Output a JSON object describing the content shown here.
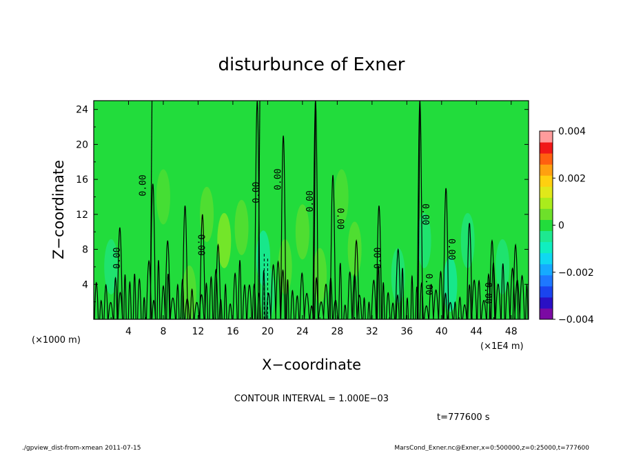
{
  "chart_data": {
    "type": "heatmap",
    "title": "disturbunce of Exner",
    "xlabel": "X−coordinate",
    "ylabel": "Z−coordinate",
    "x_unit": "(×1E4 m)",
    "y_unit": "(×1000 m)",
    "xlim": [
      0,
      50
    ],
    "ylim": [
      0,
      25
    ],
    "x_ticks": [
      "4",
      "8",
      "12",
      "16",
      "20",
      "24",
      "28",
      "32",
      "36",
      "40",
      "44",
      "48"
    ],
    "y_ticks": [
      "4",
      "8",
      "12",
      "16",
      "20",
      "24"
    ],
    "colorbar": {
      "ticks": [
        "0.004",
        "0.002",
        "0",
        "−0.002",
        "−0.004"
      ],
      "levels": [
        -0.004,
        -0.0035,
        -0.003,
        -0.0025,
        -0.002,
        -0.0015,
        -0.001,
        -0.0005,
        0,
        0.0005,
        0.001,
        0.0015,
        0.002,
        0.0025,
        0.003,
        0.0035,
        0.004
      ],
      "colors": [
        "#7b0aa3",
        "#2a10c4",
        "#1a44ee",
        "#1e78ff",
        "#16aaff",
        "#10d8f0",
        "#10eec0",
        "#1ee890",
        "#22dc3c",
        "#6ee02a",
        "#aaec1c",
        "#e0e81a",
        "#ffd010",
        "#ffa010",
        "#ff6010",
        "#f01818",
        "#ff9c9c"
      ]
    },
    "background_color": "#22dc3c",
    "contour_interval_text": "CONTOUR INTERVAL = 1.000E−03",
    "contour_label": "0.00",
    "contour_labels": [
      {
        "x": 6.0,
        "z": 15.3,
        "text": "0.00",
        "flip": false
      },
      {
        "x": 3.0,
        "z": 7.0,
        "text": "0.00",
        "flip": false
      },
      {
        "x": 12.0,
        "z": 8.5,
        "text": "0.00",
        "flip": true
      },
      {
        "x": 19.0,
        "z": 14.5,
        "text": "0.00",
        "flip": false
      },
      {
        "x": 21.5,
        "z": 16.0,
        "text": "0.00",
        "flip": false
      },
      {
        "x": 25.2,
        "z": 13.5,
        "text": "0.00",
        "flip": false
      },
      {
        "x": 28.0,
        "z": 11.5,
        "text": "0.00",
        "flip": true
      },
      {
        "x": 33.0,
        "z": 7.0,
        "text": "0.00",
        "flip": false
      },
      {
        "x": 37.8,
        "z": 12.0,
        "text": "0.00",
        "flip": true
      },
      {
        "x": 38.2,
        "z": 4.0,
        "text": "0.00",
        "flip": true
      },
      {
        "x": 40.8,
        "z": 8.0,
        "text": "0.00",
        "flip": true
      },
      {
        "x": 45.0,
        "z": 3.0,
        "text": "0.00",
        "flip": true
      }
    ]
  },
  "time_text": "t=777600 s",
  "footer": {
    "left": "./gpview_dist-from-xmean   2011-07-15",
    "right": "MarsCond_Exner.nc@Exner,x=0:500000,z=0:25000,t=777600"
  }
}
